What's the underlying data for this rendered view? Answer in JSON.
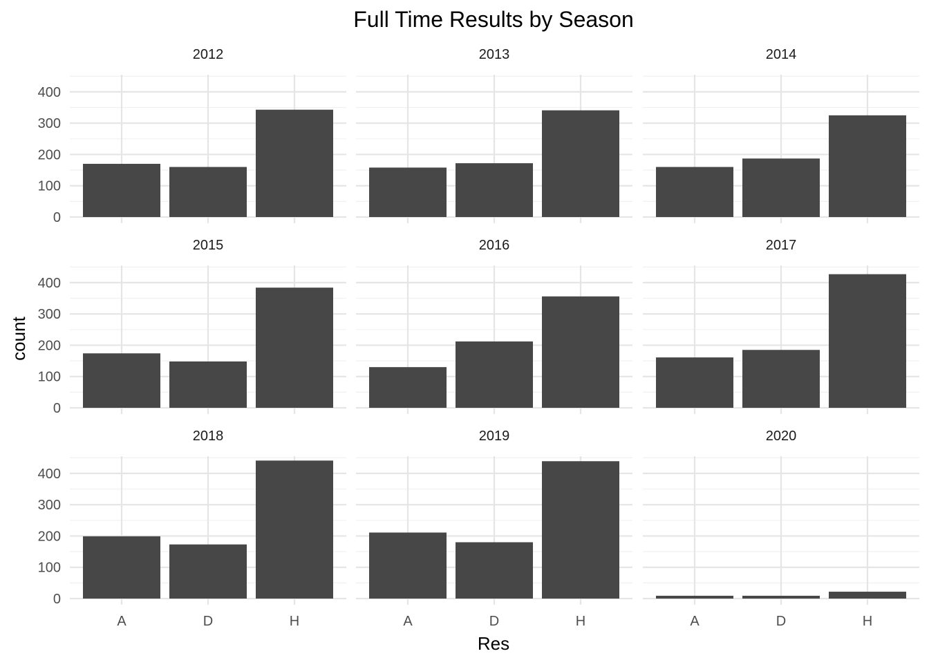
{
  "chart_data": {
    "type": "bar",
    "title": "Full Time Results by Season",
    "xlabel": "Res",
    "ylabel": "count",
    "categories": [
      "A",
      "D",
      "H"
    ],
    "ylim": [
      0,
      455
    ],
    "y_ticks": [
      0,
      100,
      200,
      300,
      400
    ],
    "grid": true,
    "facets": [
      {
        "label": "2012",
        "values": [
          170,
          160,
          343
        ]
      },
      {
        "label": "2013",
        "values": [
          158,
          172,
          341
        ]
      },
      {
        "label": "2014",
        "values": [
          160,
          187,
          325
        ]
      },
      {
        "label": "2015",
        "values": [
          174,
          148,
          384
        ]
      },
      {
        "label": "2016",
        "values": [
          130,
          212,
          356
        ]
      },
      {
        "label": "2017",
        "values": [
          161,
          185,
          427
        ]
      },
      {
        "label": "2018",
        "values": [
          199,
          173,
          441
        ]
      },
      {
        "label": "2019",
        "values": [
          211,
          180,
          439
        ]
      },
      {
        "label": "2020",
        "values": [
          9,
          9,
          22
        ]
      }
    ],
    "bar_color": "#474747",
    "grid_major_color": "#e5e5e5",
    "grid_minor_color": "#f0f0f0"
  }
}
